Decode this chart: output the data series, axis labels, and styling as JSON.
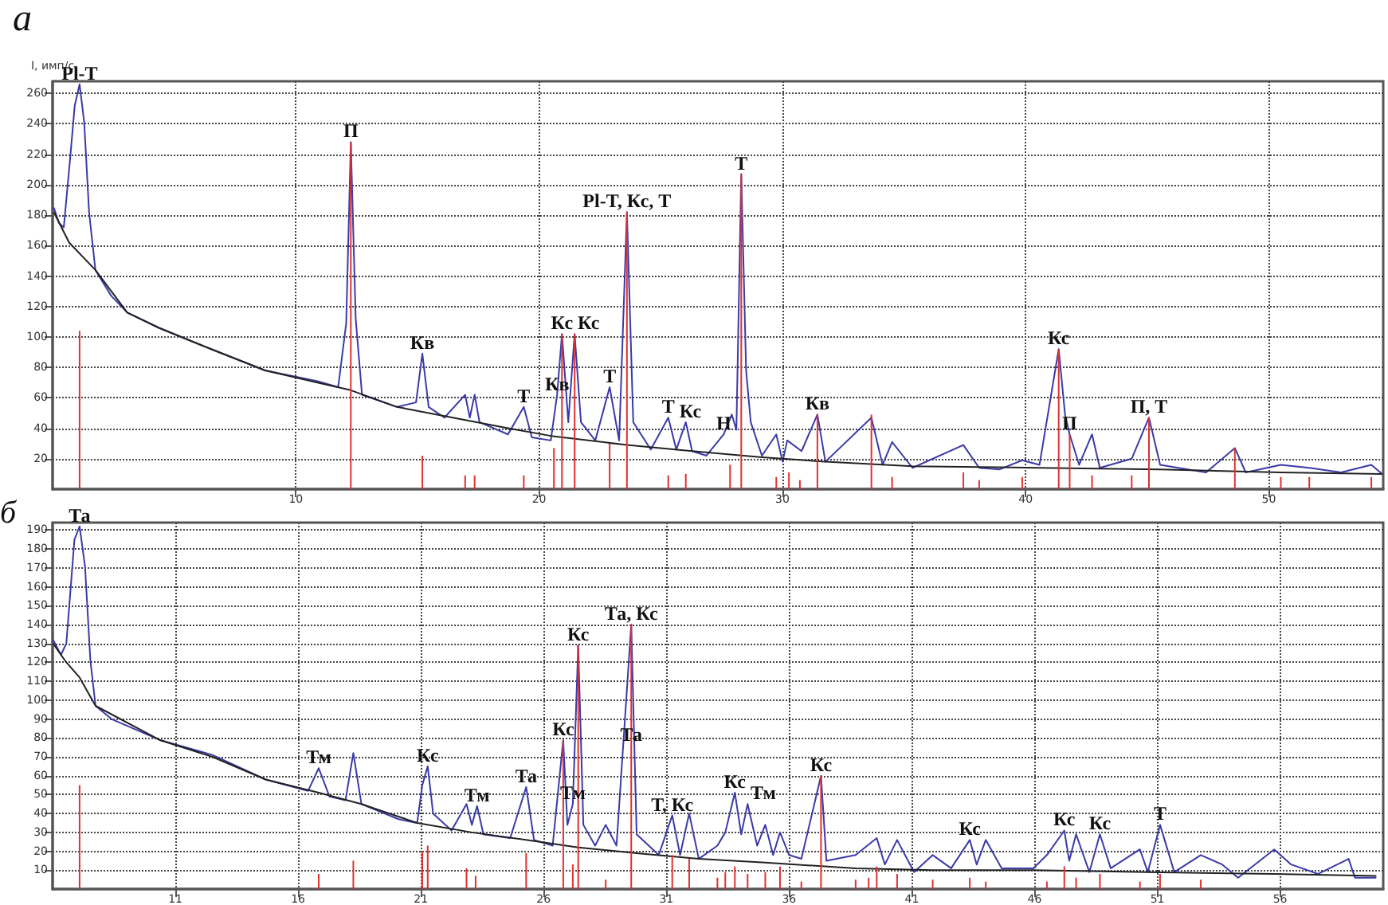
{
  "chart_data": [
    {
      "type": "line",
      "title": "а",
      "ylabel": "I, имп/с",
      "xlim": [
        0,
        54.7
      ],
      "ylim": [
        0,
        268
      ],
      "xticks": [
        10,
        20,
        30,
        40,
        50
      ],
      "yticks": [
        20,
        40,
        60,
        80,
        100,
        120,
        140,
        160,
        180,
        200,
        220,
        240,
        260
      ],
      "grid": true,
      "marker": "none",
      "series": [
        {
          "color": "#3a3aa8",
          "x": [
            0.05,
            0.26,
            0.46,
            0.72,
            0.91,
            1.11,
            1.3,
            1.5,
            1.76,
            2.41,
            3.07,
            4.37,
            6.52,
            8.74,
            10.89,
            11.74,
            12.07,
            12.26,
            12.46,
            12.72,
            14.16,
            14.94,
            15.2,
            15.46,
            16.11,
            16.96,
            17.15,
            17.35,
            17.55,
            18.72,
            19.37,
            19.7,
            20.48,
            20.74,
            20.94,
            21.2,
            21.46,
            21.72,
            22.31,
            22.9,
            23.29,
            23.61,
            23.87,
            24.59,
            25.31,
            25.64,
            26.03,
            26.29,
            26.88,
            27.59,
            27.92,
            28.11,
            28.31,
            28.51,
            28.7,
            29.16,
            29.75,
            30.01,
            30.2,
            30.79,
            31.44,
            31.77,
            33.66,
            34.12,
            34.51,
            35.35,
            37.44,
            38.09,
            38.94,
            39.86,
            40.57,
            41.36,
            41.62,
            41.81,
            42.2,
            42.73,
            43.05,
            44.36,
            45.07,
            45.53,
            47.42,
            48.6,
            49.05,
            50.49,
            51.66,
            52.97,
            54.21,
            54.66
          ],
          "values": [
            185,
            175,
            172,
            217,
            252,
            266,
            241,
            182,
            144,
            127,
            116,
            106,
            92,
            78,
            71,
            67,
            109,
            228,
            112,
            62,
            54,
            57,
            89,
            54,
            47,
            62,
            47,
            62,
            44,
            36,
            54,
            34,
            32,
            62,
            102,
            44,
            102,
            44,
            32,
            67,
            32,
            182,
            44,
            26,
            47,
            26,
            44,
            25,
            22,
            36,
            49,
            39,
            207,
            78,
            44,
            22,
            36,
            18,
            32,
            25,
            49,
            18,
            47,
            16,
            31,
            14,
            29,
            14,
            13,
            19,
            16,
            92,
            49,
            36,
            16,
            36,
            14,
            20,
            47,
            16,
            11,
            27,
            11,
            16,
            14,
            11,
            16,
            10
          ]
        },
        {
          "color": "#222222",
          "x": [
            0.05,
            0.68,
            1.76,
            3.07,
            4.37,
            6.52,
            8.74,
            10.89,
            12.26,
            14.16,
            16.11,
            18.72,
            20.48,
            23.61,
            26.29,
            29.16,
            31.77,
            35.35,
            40.57,
            45.53,
            50.49,
            54.66
          ],
          "values": [
            182,
            162,
            144,
            116,
            106,
            92,
            78,
            70,
            65,
            54,
            48,
            40,
            35,
            29,
            25,
            21,
            18,
            15,
            14,
            13,
            11,
            10
          ]
        },
        {
          "type": "bar",
          "color": "#e03030",
          "x": [
            1.11,
            12.26,
            15.2,
            16.96,
            17.35,
            19.37,
            20.61,
            20.94,
            21.46,
            22.9,
            23.61,
            25.31,
            26.03,
            27.85,
            28.31,
            29.75,
            30.27,
            30.72,
            31.44,
            33.66,
            34.51,
            37.44,
            38.09,
            39.86,
            41.36,
            41.81,
            42.73,
            44.36,
            45.07,
            48.6,
            50.49,
            51.66,
            54.21
          ],
          "values": [
            104,
            228,
            22,
            9,
            9,
            9,
            27,
            102,
            102,
            30,
            182,
            9,
            10,
            16,
            207,
            8,
            11,
            6,
            49,
            49,
            8,
            11,
            6,
            8,
            92,
            36,
            9,
            9,
            47,
            27,
            8,
            8,
            8
          ]
        }
      ],
      "annotations": [
        {
          "text": "Pl-T",
          "x": 1.11,
          "y": 266
        },
        {
          "text": "П",
          "x": 12.26,
          "y": 228
        },
        {
          "text": "Кв",
          "x": 15.2,
          "y": 89
        },
        {
          "text": "Т",
          "x": 19.37,
          "y": 54
        },
        {
          "text": "Кв",
          "x": 20.74,
          "y": 62
        },
        {
          "text": "Кс",
          "x": 20.94,
          "y": 102
        },
        {
          "text": "Кс",
          "x": 21.46,
          "y": 102
        },
        {
          "text": "Т",
          "x": 22.9,
          "y": 67
        },
        {
          "text": "Pl-T, Кс, Т",
          "x": 23.61,
          "y": 182
        },
        {
          "text": "Т",
          "x": 25.31,
          "y": 47
        },
        {
          "text": "Кс",
          "x": 26.03,
          "y": 44
        },
        {
          "text": "Н",
          "x": 27.59,
          "y": 36
        },
        {
          "text": "Т",
          "x": 28.31,
          "y": 207
        },
        {
          "text": "Кв",
          "x": 31.44,
          "y": 49
        },
        {
          "text": "Кс",
          "x": 41.36,
          "y": 92
        },
        {
          "text": "П",
          "x": 41.81,
          "y": 36
        },
        {
          "text": "П, Т",
          "x": 45.07,
          "y": 47
        }
      ]
    },
    {
      "type": "line",
      "title": "б",
      "xlim": [
        6,
        60.2
      ],
      "ylim": [
        0,
        194
      ],
      "xticks": [
        11,
        16,
        21,
        26,
        31,
        36,
        41,
        46,
        51,
        56
      ],
      "yticks": [
        10,
        20,
        30,
        40,
        50,
        60,
        70,
        80,
        90,
        100,
        110,
        120,
        130,
        140,
        150,
        160,
        170,
        180,
        190
      ],
      "grid": true,
      "marker": "none",
      "series": [
        {
          "color": "#3a3aa8",
          "x": [
            6.02,
            6.34,
            6.56,
            6.89,
            7.1,
            7.32,
            7.54,
            7.75,
            8.4,
            10.35,
            12.51,
            14.68,
            16.41,
            16.84,
            17.28,
            17.93,
            18.25,
            18.58,
            20.09,
            20.85,
            21.06,
            21.28,
            21.5,
            22.25,
            22.86,
            23.08,
            23.29,
            23.55,
            24.64,
            25.29,
            25.61,
            26.37,
            26.8,
            26.97,
            27.19,
            27.41,
            27.62,
            28.1,
            28.53,
            28.97,
            29.57,
            29.79,
            30.69,
            31.24,
            31.56,
            31.93,
            32.32,
            33.08,
            33.4,
            33.79,
            34.05,
            34.31,
            34.7,
            35.03,
            35.35,
            35.63,
            36.0,
            36.5,
            37.3,
            37.52,
            38.71,
            39.57,
            39.9,
            40.4,
            41.09,
            41.85,
            42.6,
            43.36,
            43.64,
            44.01,
            44.66,
            45.95,
            46.5,
            47.21,
            47.41,
            47.69,
            48.23,
            48.66,
            49.1,
            50.29,
            50.61,
            51.11,
            51.69,
            52.77,
            53.64,
            54.29,
            55.76,
            56.45,
            57.54,
            58.79,
            59.05,
            59.92
          ],
          "values": [
            132,
            124,
            130,
            185,
            192,
            171,
            121,
            97,
            90,
            79,
            71,
            58,
            52,
            64,
            49,
            47,
            72,
            45,
            37,
            35,
            55,
            65,
            40,
            31,
            45,
            34,
            44,
            29,
            27,
            54,
            26,
            23,
            79,
            34,
            45,
            129,
            34,
            23,
            34,
            23,
            140,
            29,
            18,
            39,
            18,
            40,
            16,
            23,
            30,
            51,
            29,
            45,
            23,
            34,
            18,
            30,
            18,
            16,
            60,
            15,
            18,
            27,
            13,
            26,
            9,
            18,
            11,
            26,
            13,
            26,
            11,
            11,
            18,
            31,
            15,
            29,
            9,
            29,
            11,
            21,
            9,
            34,
            9,
            18,
            13,
            6,
            21,
            13,
            8,
            16,
            6,
            6
          ]
        },
        {
          "color": "#222222",
          "x": [
            6.02,
            6.56,
            7.1,
            7.75,
            10.35,
            12.51,
            14.68,
            16.84,
            18.58,
            20.85,
            23.08,
            25.29,
            27.41,
            29.79,
            32.32,
            35.03,
            38.71,
            41.85,
            45.95,
            50.61,
            55.76,
            59.92
          ],
          "values": [
            130,
            120,
            112,
            97,
            79,
            70,
            58,
            51,
            45,
            35,
            30,
            26,
            22,
            19,
            16,
            14,
            11,
            10,
            10,
            9,
            8,
            7
          ]
        },
        {
          "type": "bar",
          "color": "#e03030",
          "x": [
            7.1,
            16.84,
            18.25,
            21.06,
            21.28,
            22.86,
            23.23,
            25.29,
            26.8,
            27.19,
            27.41,
            28.53,
            29.57,
            31.24,
            31.93,
            33.08,
            33.4,
            33.79,
            34.31,
            35.03,
            35.63,
            36.5,
            37.3,
            38.71,
            39.24,
            39.57,
            40.4,
            41.85,
            43.36,
            44.01,
            46.5,
            47.21,
            47.69,
            48.66,
            50.29,
            51.11,
            52.77
          ],
          "values": [
            55,
            8,
            15,
            20,
            23,
            11,
            7,
            19,
            79,
            13,
            129,
            5,
            140,
            18,
            16,
            6,
            9,
            12,
            8,
            9,
            12,
            4,
            60,
            5,
            6,
            12,
            8,
            5,
            6,
            4,
            4,
            12,
            6,
            8,
            4,
            8,
            5
          ]
        }
      ],
      "annotations": [
        {
          "text": "Та",
          "x": 7.1,
          "y": 192
        },
        {
          "text": "Тм",
          "x": 16.84,
          "y": 64
        },
        {
          "text": "Кс",
          "x": 21.28,
          "y": 65
        },
        {
          "text": "Тм",
          "x": 23.29,
          "y": 44
        },
        {
          "text": "Та",
          "x": 25.29,
          "y": 54
        },
        {
          "text": "Кс",
          "x": 26.8,
          "y": 79
        },
        {
          "text": "Тм",
          "x": 27.19,
          "y": 45
        },
        {
          "text": "Кс",
          "x": 27.41,
          "y": 129
        },
        {
          "text": "Та, Кс",
          "x": 29.57,
          "y": 140
        },
        {
          "text": "Та",
          "x": 29.57,
          "y": 76
        },
        {
          "text": "Т, Кс",
          "x": 31.24,
          "y": 39
        },
        {
          "text": "Кс",
          "x": 33.79,
          "y": 51
        },
        {
          "text": "Тм",
          "x": 34.31,
          "y": 45
        },
        {
          "text": "Кс",
          "x": 37.3,
          "y": 60
        },
        {
          "text": "Кс",
          "x": 43.36,
          "y": 26
        },
        {
          "text": "Кс",
          "x": 47.21,
          "y": 31
        },
        {
          "text": "Кс",
          "x": 48.66,
          "y": 29
        },
        {
          "text": "Т",
          "x": 51.11,
          "y": 34
        }
      ]
    }
  ]
}
